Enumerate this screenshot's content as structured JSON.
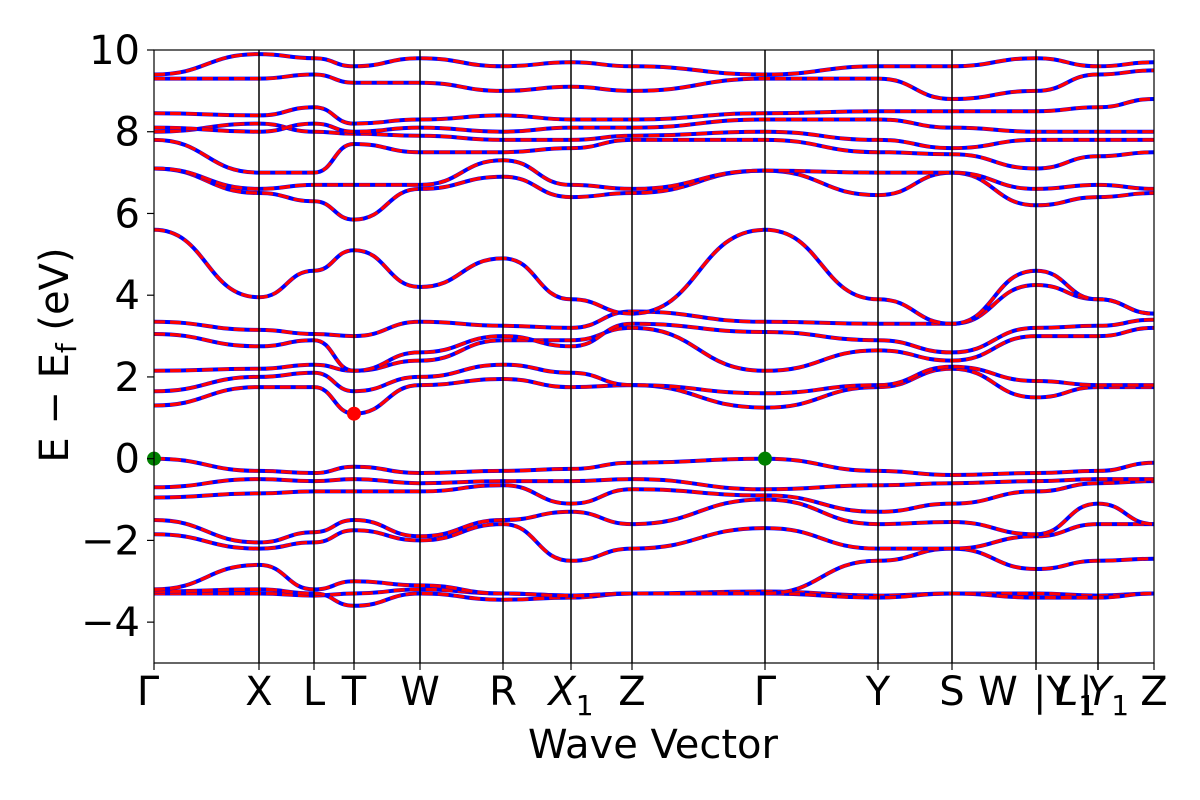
{
  "chart_data": {
    "type": "line",
    "xlabel": "Wave Vector",
    "ylabel_main": "E − E",
    "ylabel_sub": "f",
    "ylabel_unit": " (eV)",
    "ylim": [
      -5,
      10
    ],
    "yticks": [
      -4,
      -2,
      0,
      2,
      4,
      6,
      8,
      10
    ],
    "ytick_labels": [
      "−4",
      "−2",
      "0",
      "2",
      "4",
      "6",
      "8",
      "10"
    ],
    "kpath_ticks": [
      {
        "label": "Γ",
        "sub": "",
        "pos": 0.0
      },
      {
        "label": "X",
        "sub": "",
        "pos": 0.105
      },
      {
        "label": "L",
        "sub": "",
        "pos": 0.16
      },
      {
        "label": "T",
        "sub": "",
        "pos": 0.2
      },
      {
        "label": "W",
        "sub": "",
        "pos": 0.266
      },
      {
        "label": "R",
        "sub": "",
        "pos": 0.349
      },
      {
        "label": "X",
        "sub": "1",
        "pos": 0.417
      },
      {
        "label": "Z",
        "sub": "",
        "pos": 0.478
      },
      {
        "label": "Γ",
        "sub": "",
        "pos": 0.611
      },
      {
        "label": "Y",
        "sub": "",
        "pos": 0.724
      },
      {
        "label": "S",
        "sub": "",
        "pos": 0.798
      },
      {
        "label": "W",
        "sub": "",
        "pos": 0.882
      },
      {
        "label": "|Y",
        "sub": "",
        "pos": 0.882
      },
      {
        "label": "L",
        "sub": "1",
        "pos": 0.944
      },
      {
        "label": "|",
        "sub": "",
        "pos": 0.944
      },
      {
        "label": "Y",
        "sub": "1",
        "pos": 0.944
      },
      {
        "label": "Z",
        "sub": "",
        "pos": 1.0
      }
    ],
    "series": [
      {
        "color": "#0000ff",
        "style": "solid"
      },
      {
        "color": "#ff0000",
        "style": "dashed"
      }
    ],
    "bands": [
      [
        -3.3,
        -3.3,
        -3.35,
        -3.3,
        -3.2,
        -3.3,
        -3.35,
        -3.3,
        -3.25,
        -3.35,
        -3.3,
        -3.3,
        -3.35,
        -3.3
      ],
      [
        -3.25,
        -3.2,
        -3.3,
        -3.6,
        -3.3,
        -3.45,
        -3.4,
        -3.3,
        -3.3,
        -3.4,
        -3.3,
        -3.4,
        -3.4,
        -3.3
      ],
      [
        -3.2,
        -2.6,
        -3.2,
        -3.0,
        -3.1,
        -3.3,
        -3.35,
        -3.3,
        -3.3,
        -2.5,
        -2.2,
        -2.7,
        -2.5,
        -2.45
      ],
      [
        -1.85,
        -2.2,
        -2.05,
        -1.75,
        -2.0,
        -1.6,
        -2.5,
        -2.2,
        -1.7,
        -2.2,
        -2.2,
        -1.9,
        -1.6,
        -1.6
      ],
      [
        -1.5,
        -2.05,
        -1.8,
        -1.5,
        -1.9,
        -1.5,
        -1.3,
        -1.6,
        -1.0,
        -1.6,
        -1.55,
        -1.85,
        -1.1,
        -1.6
      ],
      [
        -0.95,
        -0.85,
        -0.8,
        -0.8,
        -0.8,
        -0.65,
        -1.1,
        -0.75,
        -0.9,
        -1.3,
        -1.1,
        -0.8,
        -0.6,
        -0.55
      ],
      [
        -0.7,
        -0.5,
        -0.55,
        -0.5,
        -0.6,
        -0.55,
        -0.55,
        -0.5,
        -0.75,
        -0.65,
        -0.6,
        -0.55,
        -0.5,
        -0.5
      ],
      [
        0.0,
        -0.3,
        -0.35,
        -0.2,
        -0.35,
        -0.3,
        -0.25,
        -0.1,
        0.0,
        -0.3,
        -0.4,
        -0.35,
        -0.3,
        -0.1
      ],
      [
        1.3,
        1.75,
        1.75,
        1.1,
        1.8,
        1.95,
        1.75,
        1.8,
        1.25,
        1.75,
        2.2,
        1.5,
        1.75,
        1.75
      ],
      [
        1.65,
        2.0,
        2.1,
        1.65,
        2.0,
        2.3,
        2.1,
        1.8,
        1.6,
        1.8,
        2.25,
        1.9,
        1.8,
        1.8
      ],
      [
        2.15,
        2.2,
        2.3,
        2.15,
        2.4,
        2.9,
        2.9,
        3.2,
        2.15,
        2.65,
        2.4,
        3.0,
        3.0,
        3.2
      ],
      [
        3.05,
        2.75,
        2.9,
        2.15,
        2.6,
        3.0,
        2.75,
        3.3,
        3.1,
        2.9,
        2.6,
        3.2,
        3.25,
        3.4
      ],
      [
        3.35,
        3.15,
        3.05,
        3.0,
        3.35,
        3.25,
        3.2,
        3.6,
        3.35,
        3.3,
        3.3,
        4.25,
        3.9,
        3.55
      ],
      [
        5.6,
        3.95,
        4.6,
        5.1,
        4.2,
        4.9,
        3.9,
        3.55,
        5.6,
        3.9,
        3.3,
        4.6,
        3.9,
        3.55
      ],
      [
        7.1,
        6.5,
        6.3,
        5.85,
        6.6,
        6.9,
        6.4,
        6.5,
        7.05,
        6.45,
        7.0,
        6.2,
        6.4,
        6.5
      ],
      [
        7.1,
        6.6,
        6.7,
        6.7,
        6.7,
        7.3,
        6.7,
        6.6,
        7.05,
        7.0,
        7.0,
        6.6,
        6.7,
        6.6
      ],
      [
        7.8,
        7.0,
        7.0,
        7.7,
        7.5,
        7.5,
        7.6,
        7.8,
        7.8,
        7.5,
        7.45,
        7.1,
        7.4,
        7.5
      ],
      [
        8.0,
        8.2,
        8.0,
        7.95,
        7.9,
        7.8,
        7.8,
        7.9,
        8.0,
        7.8,
        7.6,
        7.8,
        7.8,
        7.8
      ],
      [
        8.1,
        8.0,
        8.2,
        8.0,
        8.1,
        8.0,
        8.1,
        8.1,
        8.3,
        8.3,
        8.1,
        8.0,
        8.0,
        8.0
      ],
      [
        8.45,
        8.4,
        8.6,
        8.2,
        8.3,
        8.4,
        8.3,
        8.3,
        8.45,
        8.5,
        8.5,
        8.5,
        8.6,
        8.8
      ],
      [
        9.3,
        9.3,
        9.4,
        9.2,
        9.2,
        9.0,
        9.1,
        9.0,
        9.3,
        9.3,
        8.8,
        9.0,
        9.4,
        9.5
      ],
      [
        9.4,
        9.9,
        9.8,
        9.6,
        9.8,
        9.6,
        9.7,
        9.6,
        9.4,
        9.6,
        9.6,
        9.8,
        9.6,
        9.7
      ]
    ],
    "points": [
      {
        "x": 0.0,
        "y": 0.0,
        "color": "#008000"
      },
      {
        "x": 0.611,
        "y": 0.0,
        "color": "#008000"
      },
      {
        "x": 0.2,
        "y": 1.1,
        "color": "#ff0000"
      }
    ]
  }
}
